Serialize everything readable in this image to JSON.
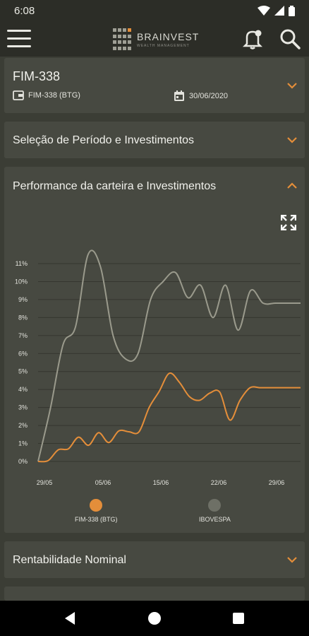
{
  "status_bar": {
    "time": "6:08"
  },
  "app_bar": {
    "brand": "BRAINVEST",
    "tagline": "WEALTH MANAGEMENT"
  },
  "fund": {
    "title": "FIM-338",
    "account_label": "FIM-338 (BTG)",
    "date": "30/06/2020"
  },
  "sections": {
    "periodo": "Seleção de Período e Investimentos",
    "performance": "Performance da carteira e Investimentos",
    "rentabilidade": "Rentabilidade Nominal"
  },
  "colors": {
    "fund_line": "#e48e3a",
    "index_line": "#9a9a8c",
    "accent": "#e48e3a"
  },
  "chart_data": {
    "type": "line",
    "categories": [
      "29/05",
      "05/06",
      "15/06",
      "22/06",
      "29/06"
    ],
    "y_ticks": [
      "0%",
      "1%",
      "2%",
      "3%",
      "4%",
      "5%",
      "6%",
      "7%",
      "8%",
      "9%",
      "10%",
      "11%"
    ],
    "ylim": [
      0,
      11
    ],
    "grid": true,
    "legend_position": "bottom",
    "series": [
      {
        "name": "FIM-338 (BTG)",
        "x": [
          0,
          1,
          2,
          3,
          4,
          5,
          6,
          7,
          8,
          9,
          10,
          11,
          12,
          13,
          14,
          15,
          16,
          17,
          18,
          19,
          20,
          21,
          22,
          23,
          24,
          25,
          26
        ],
        "values": [
          0.0,
          0.05,
          0.65,
          0.7,
          1.35,
          0.9,
          1.6,
          1.05,
          1.7,
          1.65,
          1.65,
          3.0,
          3.9,
          4.9,
          4.4,
          3.6,
          3.4,
          3.8,
          3.85,
          2.3,
          3.4,
          4.1,
          4.1,
          4.1,
          4.1,
          4.1,
          4.1
        ]
      },
      {
        "name": "IBOVESPA",
        "x": [
          0,
          1,
          2,
          3,
          4,
          5,
          6,
          7,
          8,
          9,
          10,
          11,
          12,
          13,
          14,
          15,
          16,
          17,
          18,
          19,
          20,
          21
        ],
        "values": [
          0.0,
          3.0,
          6.5,
          7.5,
          11.5,
          10.8,
          7.0,
          5.7,
          6.0,
          9.0,
          10.0,
          10.5,
          9.1,
          9.8,
          8.0,
          9.8,
          7.3,
          9.5,
          8.8,
          8.8,
          8.8,
          8.8
        ]
      }
    ]
  }
}
